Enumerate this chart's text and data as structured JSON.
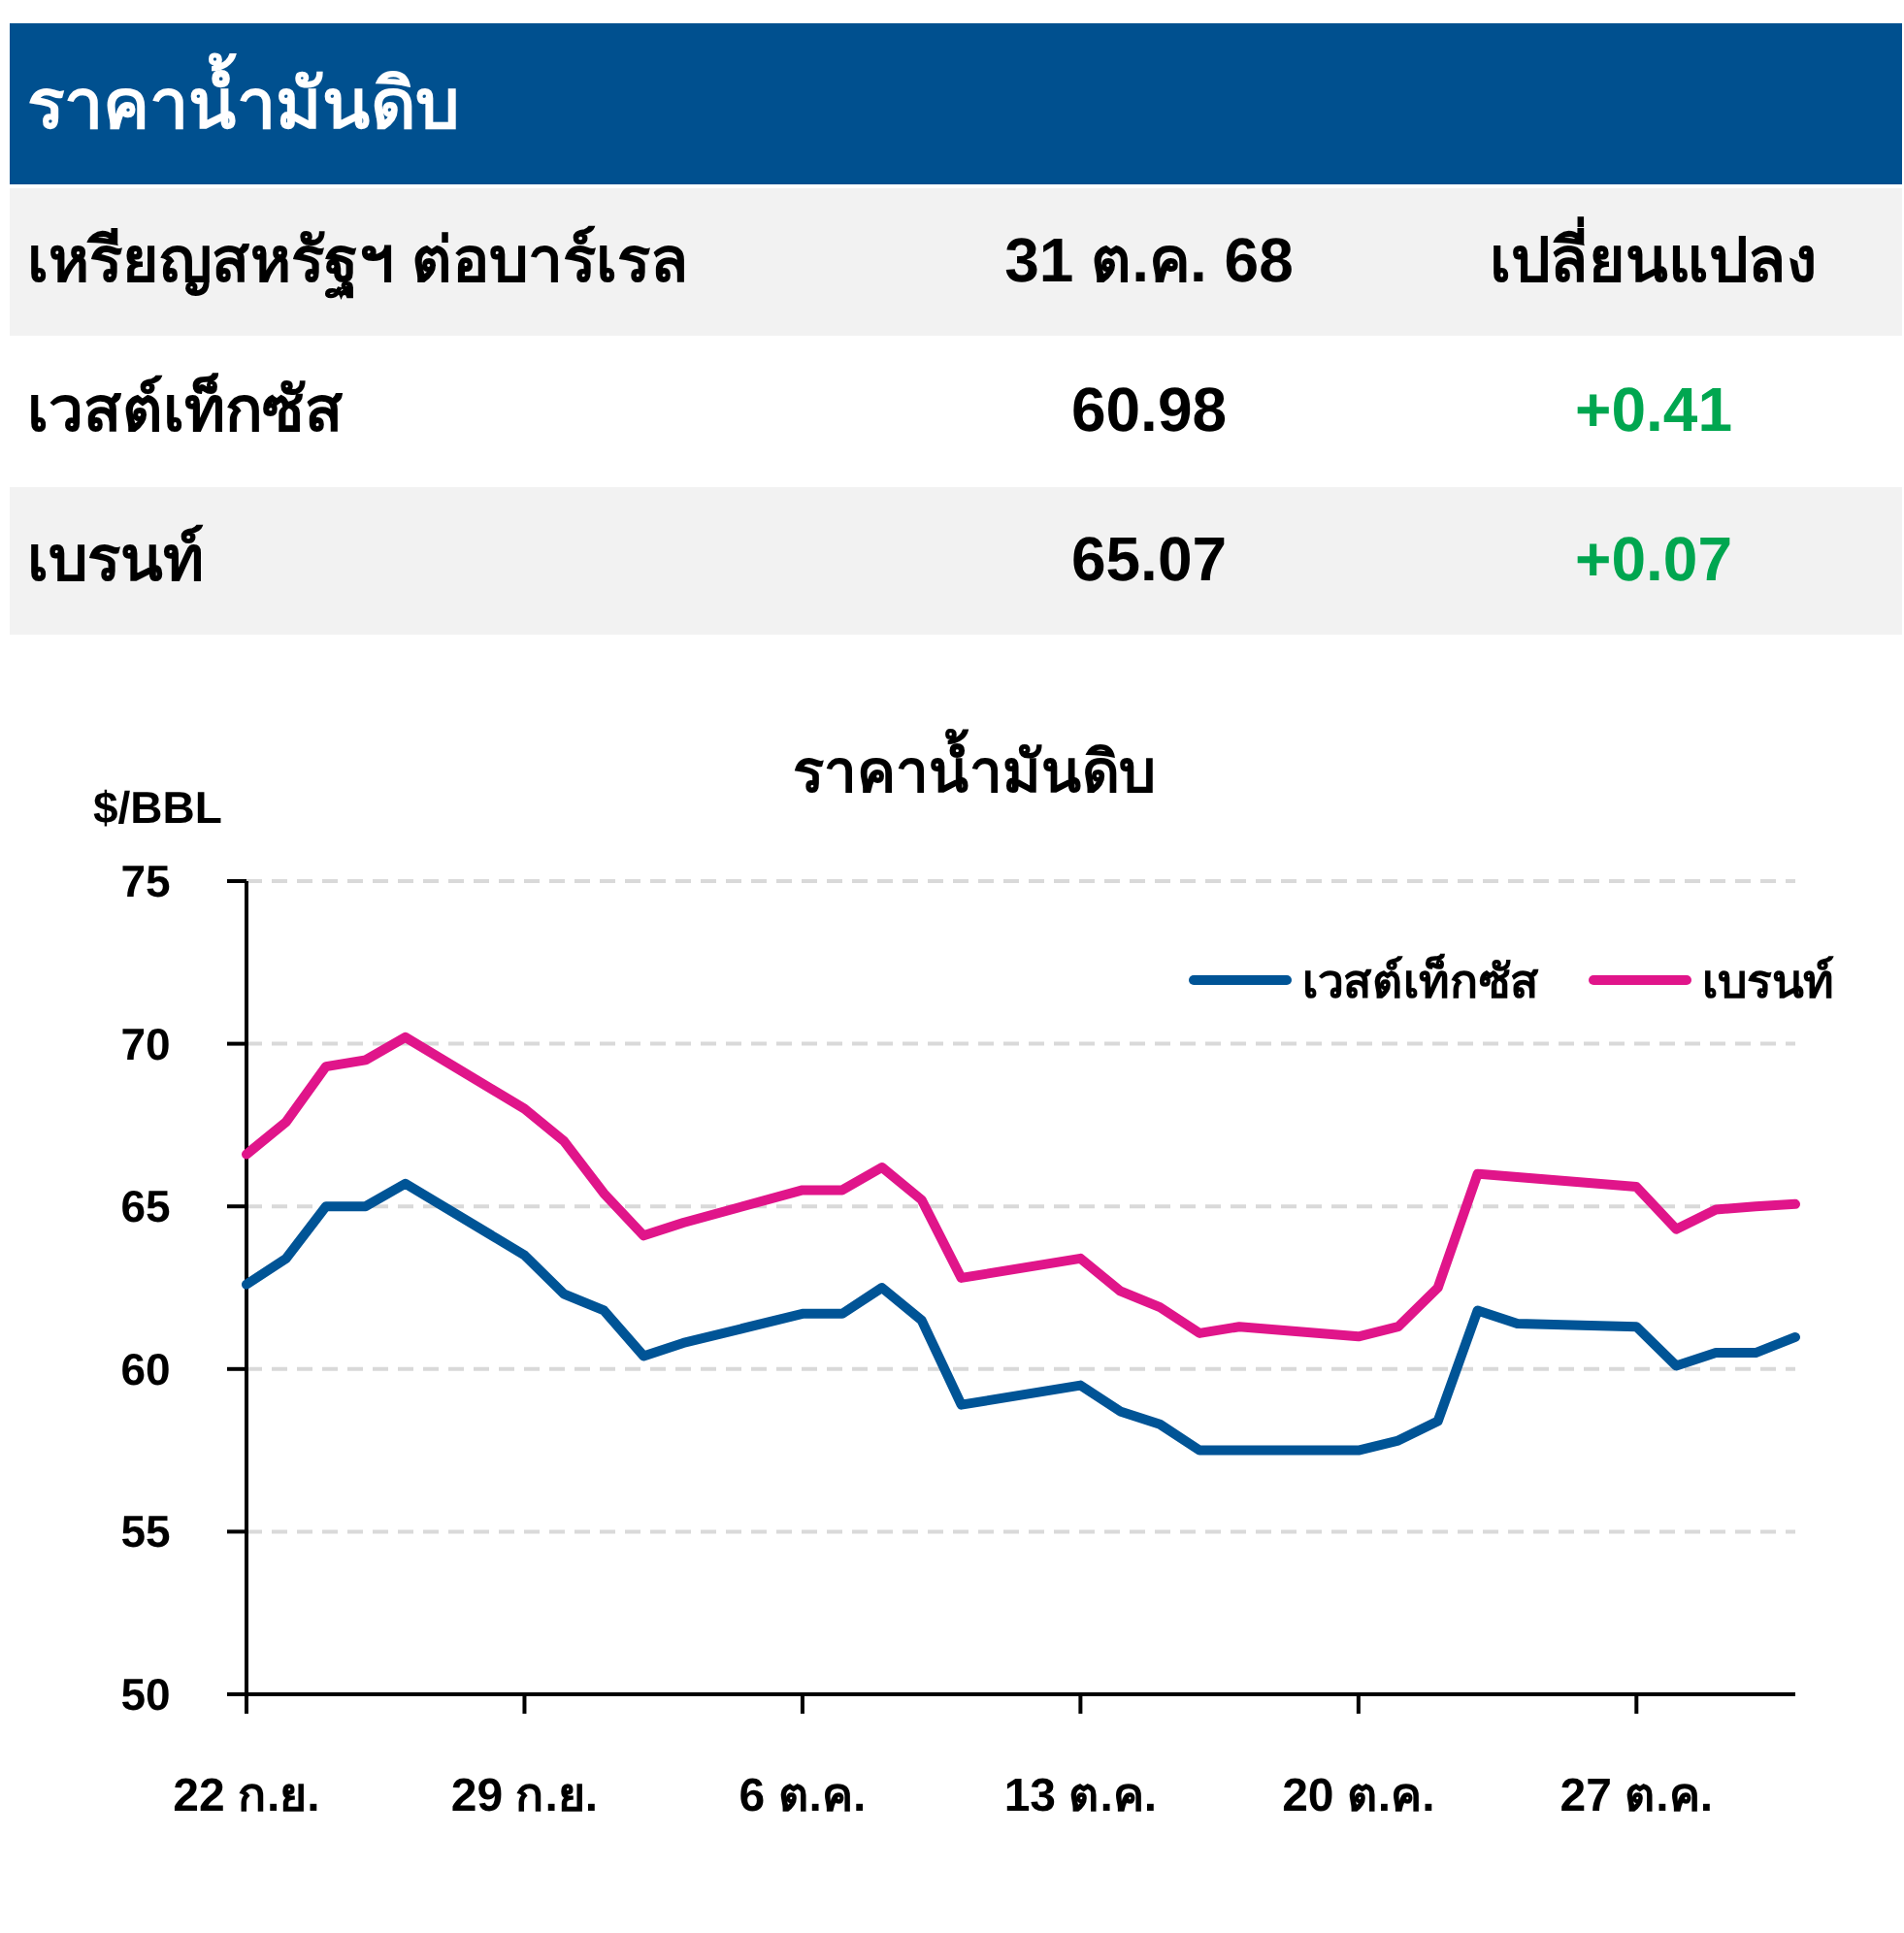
{
  "chart_data": [
    {
      "type": "other",
      "title": "ราคาน้ำมันดิบ",
      "annotations": [
        "เหรียญสหรัฐฯ ต่อบาร์เรล",
        "31 ต.ค. 68",
        "เปลี่ยนแปลง",
        "เวสต์เท็กซัส",
        "60.98",
        "+0.41",
        "เบรนท์",
        "65.07",
        "+0.07"
      ]
    },
    {
      "type": "line",
      "title": "ราคาน้ำมันดิบ",
      "ylabel": "$/BBL",
      "x": [
        "--09-22",
        "--09-23",
        "--09-24",
        "--09-25",
        "--09-26",
        "--09-29",
        "--09-30",
        "--10-01",
        "--10-02",
        "--10-03",
        "--10-06",
        "--10-07",
        "--10-08",
        "--10-09",
        "--10-10",
        "--10-13",
        "--10-14",
        "--10-15",
        "--10-16",
        "--10-17",
        "--10-20",
        "--10-21",
        "--10-22",
        "--10-23",
        "--10-24",
        "--10-27",
        "--10-28",
        "--10-29",
        "--10-30",
        "--10-31"
      ],
      "series": [
        {
          "name": "เวสต์เท็กซัส",
          "color": "#005496",
          "values": [
            62.6,
            63.4,
            65.0,
            65.0,
            65.7,
            63.5,
            62.3,
            61.8,
            60.4,
            60.8,
            61.7,
            61.7,
            62.5,
            61.5,
            58.9,
            59.5,
            58.7,
            58.3,
            57.5,
            57.5,
            57.5,
            57.8,
            58.4,
            61.8,
            61.4,
            61.3,
            60.1,
            60.5,
            60.5,
            60.98
          ]
        },
        {
          "name": "เบรนท์",
          "color": "#e0158a",
          "values": [
            66.6,
            67.6,
            69.3,
            69.5,
            70.2,
            68.0,
            67.0,
            65.4,
            64.1,
            64.5,
            65.5,
            65.5,
            66.2,
            65.2,
            62.8,
            63.4,
            62.4,
            61.9,
            61.1,
            61.3,
            61.0,
            61.3,
            62.5,
            66.0,
            65.9,
            65.6,
            64.3,
            64.9,
            65.0,
            65.07
          ]
        }
      ],
      "xlim": [
        "--09-22",
        "--10-31"
      ],
      "xticks": [
        {
          "value": "--09-22",
          "label": "22 ก.ย."
        },
        {
          "value": "--09-29",
          "label": "29 ก.ย."
        },
        {
          "value": "--10-06",
          "label": "6 ต.ค."
        },
        {
          "value": "--10-13",
          "label": "13 ต.ค."
        },
        {
          "value": "--10-20",
          "label": "20 ต.ค."
        },
        {
          "value": "--10-27",
          "label": "27 ต.ค."
        }
      ],
      "ylim": [
        50,
        75
      ],
      "yticks": [
        50,
        55,
        60,
        65,
        70,
        75
      ],
      "grid": "y",
      "legend": "top right",
      "marker": "none",
      "line_style": "solid"
    }
  ]
}
